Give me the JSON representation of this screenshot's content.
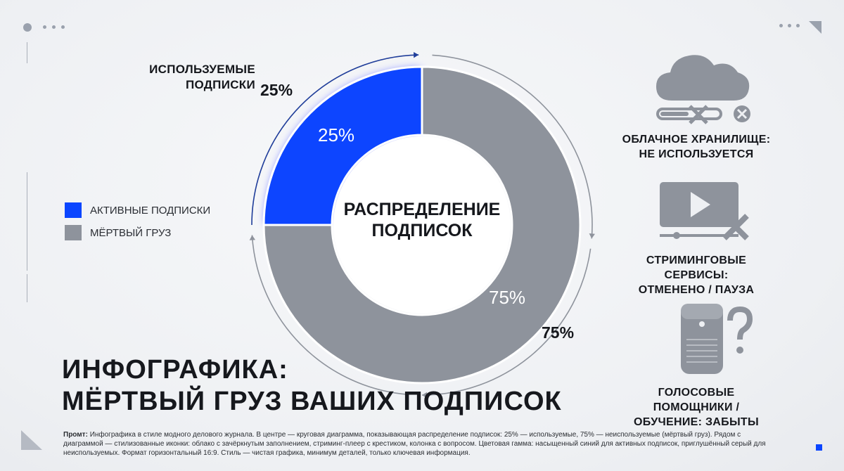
{
  "colors": {
    "active": "#0a45ff",
    "dead": "#8e939c",
    "accent": "#1f3d9a"
  },
  "chart_data": {
    "type": "pie",
    "title": "РАСПРЕДЕЛЕНИЕ ПОДПИСОК",
    "categories": [
      "АКТИВНЫЕ ПОДПИСКИ",
      "МЁРТВЫЙ ГРУЗ"
    ],
    "values": [
      25,
      75
    ],
    "data_labels": [
      "25%",
      "75%"
    ],
    "outer_labels": [
      "25%",
      "75%"
    ],
    "callout": "ИСПОЛЬЗУЕМЫЕ ПОДПИСКИ",
    "legend_position": "left"
  },
  "legend": [
    {
      "label": "АКТИВНЫЕ ПОДПИСКИ",
      "icon": "blue-square-icon"
    },
    {
      "label": "МЁРТВЫЙ ГРУЗ",
      "icon": "gray-square-icon"
    }
  ],
  "icons": [
    {
      "name": "cloud-icon",
      "label_line1": "ОБЛАЧНОЕ ХРАНИЛИЩЕ:",
      "label_line2": "НЕ ИСПОЛЬЗУЕТСЯ"
    },
    {
      "name": "video-player-icon",
      "label_line1": "СТРИМИНГОВЫЕ СЕРВИСЫ:",
      "label_line2": "ОТМЕНЕНО / ПАУЗА"
    },
    {
      "name": "smart-speaker-icon",
      "label_line1": "ГОЛОСОВЫЕ ПОМОЩНИКИ /",
      "label_line2": "ОБУЧЕНИЕ: ЗАБЫТЫ"
    }
  ],
  "heading": {
    "line1": "ИНФОГРАФИКА:",
    "line2": "МЁРТВЫЙ ГРУЗ ВАШИХ ПОДПИСОК"
  },
  "prompt": {
    "label": "Промт:",
    "text": "Инфографика в стиле модного делового журнала. В центре — круговая диаграмма, показывающая распределение подписок: 25% — используемые, 75% — неиспользуемые (мёртвый груз). Рядом с диаграммой — стилизованные иконки: облако с зачёркнутым заполнением, стриминг-плеер с крестиком, колонка с вопросом. Цветовая гамма: насыщенный синий для активных подписок, приглушённый серый для неиспользуемых. Формат горизонтальный 16:9. Стиль — чистая графика, минимум деталей, только ключевая информация."
  }
}
